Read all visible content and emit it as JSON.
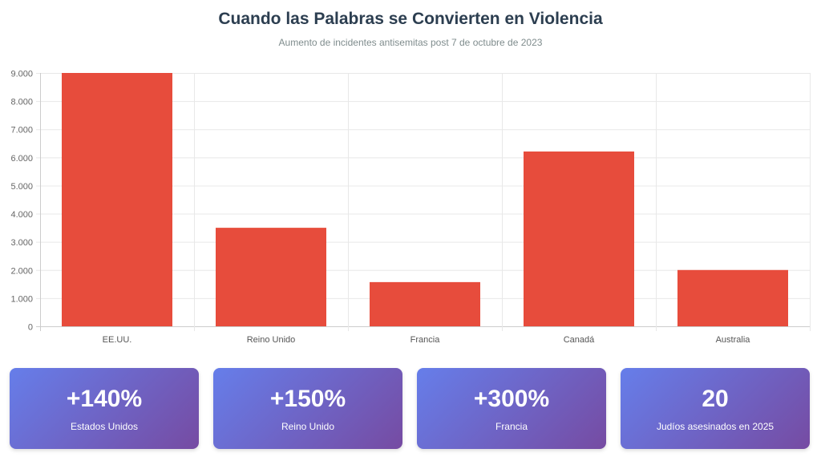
{
  "chart_data": {
    "type": "bar",
    "title": "Cuando las Palabras se Convierten en Violencia",
    "subtitle": "Aumento de incidentes antisemitas post 7 de octubre de 2023",
    "categories": [
      "EE.UU.",
      "Reino Unido",
      "Francia",
      "Canadá",
      "Australia"
    ],
    "values": [
      9000,
      3500,
      1570,
      6210,
      2000
    ],
    "ylim": [
      0,
      9000
    ],
    "yticks": [
      "0",
      "1.000",
      "2.000",
      "3.000",
      "4.000",
      "5.000",
      "6.000",
      "7.000",
      "8.000",
      "9.000"
    ],
    "color": "#e74c3c",
    "grid": true
  },
  "stats": [
    {
      "value": "+140%",
      "label": "Estados Unidos"
    },
    {
      "value": "+150%",
      "label": "Reino Unido"
    },
    {
      "value": "+300%",
      "label": "Francia"
    },
    {
      "value": "20",
      "label": "Judíos asesinados en 2025"
    }
  ]
}
